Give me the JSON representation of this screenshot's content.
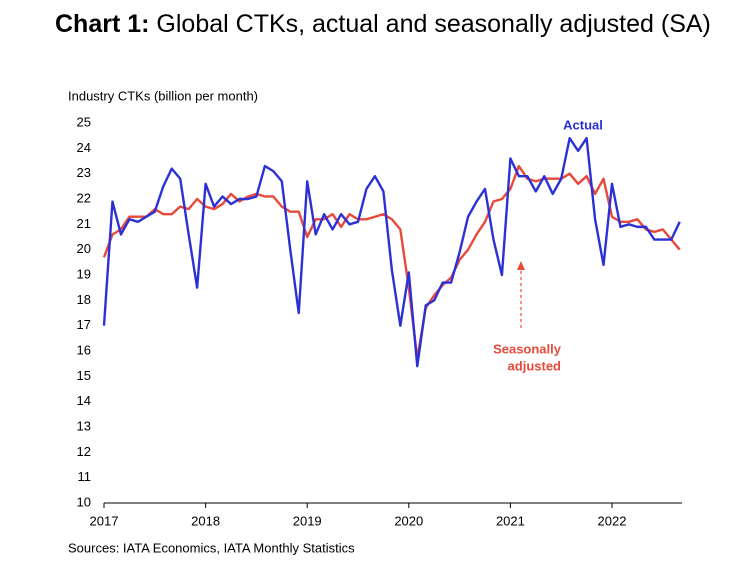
{
  "chart_data": {
    "type": "line",
    "title_label": "Chart 1:",
    "title": "Global CTKs, actual and seasonally adjusted (SA)",
    "y_label": "Industry CTKs (billion per month)",
    "source": "Sources: IATA Economics, IATA Monthly Statistics",
    "annotations": [
      "Actual",
      "Seasonally",
      "adjusted"
    ],
    "categories": [
      "2017",
      null,
      null,
      null,
      null,
      null,
      null,
      null,
      null,
      null,
      null,
      null,
      "2018",
      null,
      null,
      null,
      null,
      null,
      null,
      null,
      null,
      null,
      null,
      null,
      "2019",
      null,
      null,
      null,
      null,
      null,
      null,
      null,
      null,
      null,
      null,
      null,
      "2020",
      null,
      null,
      null,
      null,
      null,
      null,
      null,
      null,
      null,
      null,
      null,
      "2021",
      null,
      null,
      null,
      null,
      null,
      null,
      null,
      null,
      null,
      null,
      null,
      "2022",
      null,
      null,
      null,
      null,
      null,
      null,
      null,
      null
    ],
    "series": [
      {
        "name": "Actual",
        "color": "#2b31d6",
        "values": [
          17.0,
          21.9,
          20.6,
          21.2,
          21.1,
          21.3,
          21.5,
          22.5,
          23.2,
          22.8,
          20.6,
          18.5,
          22.6,
          21.7,
          22.1,
          21.8,
          22.0,
          22.0,
          22.1,
          23.3,
          23.1,
          22.7,
          20.0,
          17.5,
          22.7,
          20.6,
          21.4,
          20.8,
          21.4,
          21.0,
          21.1,
          22.4,
          22.9,
          22.3,
          19.2,
          17.0,
          19.1,
          15.4,
          17.8,
          18.0,
          18.7,
          18.7,
          19.9,
          21.3,
          21.9,
          22.4,
          20.4,
          19.0,
          23.6,
          22.9,
          22.9,
          22.3,
          22.9,
          22.2,
          22.8,
          24.4,
          23.9,
          24.4,
          21.2,
          19.4,
          22.6,
          20.9,
          21.0,
          20.9,
          20.9,
          20.4,
          20.4,
          20.4,
          21.1
        ]
      },
      {
        "name": "Seasonally adjusted",
        "color": "#e8493a",
        "values": [
          19.7,
          20.6,
          20.8,
          21.3,
          21.3,
          21.3,
          21.6,
          21.4,
          21.4,
          21.7,
          21.6,
          22.0,
          21.7,
          21.6,
          21.8,
          22.2,
          21.9,
          22.1,
          22.2,
          22.1,
          22.1,
          21.7,
          21.5,
          21.5,
          20.5,
          21.2,
          21.2,
          21.4,
          20.9,
          21.4,
          21.2,
          21.2,
          21.3,
          21.4,
          21.2,
          20.8,
          18.5,
          15.7,
          17.7,
          18.2,
          18.6,
          18.9,
          19.6,
          20.0,
          20.6,
          21.1,
          21.9,
          22.0,
          22.4,
          23.3,
          22.8,
          22.7,
          22.8,
          22.8,
          22.8,
          23.0,
          22.6,
          22.9,
          22.2,
          22.8,
          21.3,
          21.1,
          21.1,
          21.2,
          20.8,
          20.7,
          20.8,
          20.4,
          20.0
        ]
      }
    ],
    "ylim": [
      10,
      25
    ],
    "yticks": [
      10,
      11,
      12,
      13,
      14,
      15,
      16,
      17,
      18,
      19,
      20,
      21,
      22,
      23,
      24,
      25
    ],
    "grid": false
  }
}
